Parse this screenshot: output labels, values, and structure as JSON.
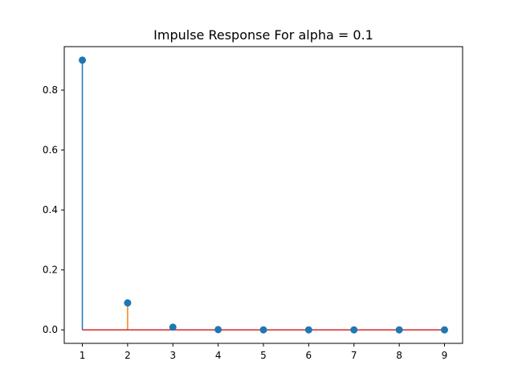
{
  "chart_data": {
    "type": "stem",
    "title": "Impulse Response For alpha = 0.1",
    "xlabel": "",
    "ylabel": "",
    "xlim": [
      0.6,
      9.4
    ],
    "ylim": [
      -0.045,
      0.945
    ],
    "x_ticks": [
      1,
      2,
      3,
      4,
      5,
      6,
      7,
      8,
      9
    ],
    "y_ticks": [
      0.0,
      0.2,
      0.4,
      0.6,
      0.8
    ],
    "x_tick_labels": [
      "1",
      "2",
      "3",
      "4",
      "5",
      "6",
      "7",
      "8",
      "9"
    ],
    "y_tick_labels": [
      "0.0",
      "0.2",
      "0.4",
      "0.6",
      "0.8"
    ],
    "grid": false,
    "legend": "none",
    "x": [
      1,
      2,
      3,
      4,
      5,
      6,
      7,
      8,
      9
    ],
    "values": [
      0.9,
      0.09,
      0.009,
      0.0009,
      9e-05,
      9e-06,
      9e-07,
      9e-08,
      9e-09
    ],
    "colors": {
      "marker": "#1f77b4",
      "stem_primary": "#1f77b4",
      "stem_secondary": "#ff7f0e",
      "baseline": "#d62728",
      "axes": "#000000",
      "background": "#ffffff"
    }
  }
}
